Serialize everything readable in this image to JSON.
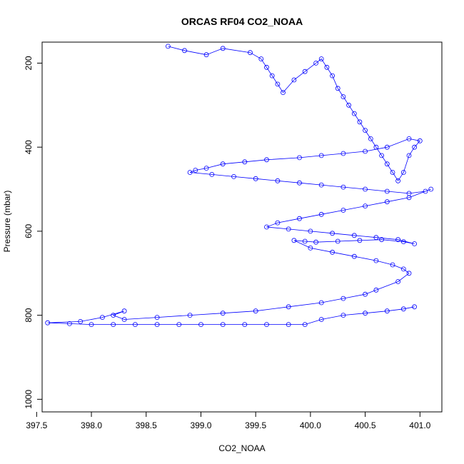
{
  "chart_data": {
    "type": "scatter",
    "title": "ORCAS RF04 CO2_NOAA",
    "xlabel": "CO2_NOAA",
    "ylabel": "Pressure (mbar)",
    "xlim": [
      397.55,
      401.2
    ],
    "ylim": [
      1030,
      150
    ],
    "y_inverted": true,
    "x_ticks": [
      "397.5",
      "398.0",
      "398.5",
      "399.0",
      "399.5",
      "400.0",
      "400.5",
      "401.0"
    ],
    "x_tick_values": [
      397.5,
      398.0,
      398.5,
      399.0,
      399.5,
      400.0,
      400.5,
      401.0
    ],
    "y_ticks": [
      "200",
      "400",
      "600",
      "800",
      "1000"
    ],
    "y_tick_values": [
      200,
      400,
      600,
      800,
      1000
    ],
    "series_color": "#0000ff",
    "marker": "open-circle",
    "connected": true,
    "series": [
      {
        "x": [
          398.7,
          398.85,
          399.05,
          399.2,
          399.45,
          399.55,
          399.6,
          399.65,
          399.7,
          399.75,
          399.85,
          399.95,
          400.05,
          400.1,
          400.15,
          400.2,
          400.25,
          400.3,
          400.35,
          400.4,
          400.45,
          400.5,
          400.55,
          400.6,
          400.65,
          400.7,
          400.75,
          400.8,
          400.85,
          400.9,
          400.95,
          401.0,
          400.9,
          400.7,
          400.5,
          400.3,
          400.1,
          399.9,
          399.6,
          399.4,
          399.2,
          399.05,
          398.95,
          398.9,
          399.1,
          399.3,
          399.5,
          399.7,
          399.9,
          400.1,
          400.3,
          400.5,
          400.7,
          400.9,
          401.05,
          401.1,
          400.9,
          400.7,
          400.5,
          400.3,
          400.1,
          399.9,
          399.7,
          399.6,
          399.8,
          400.0,
          400.2,
          400.4,
          400.6,
          400.8,
          400.95,
          400.85,
          400.65,
          400.45,
          400.25,
          400.05,
          399.95,
          399.85,
          400.0,
          400.2,
          400.4,
          400.6,
          400.75,
          400.85,
          400.9,
          400.8,
          400.6,
          400.5,
          400.3,
          400.1,
          399.8,
          399.5,
          399.2,
          398.9,
          398.6,
          398.3,
          398.2,
          398.3,
          398.1,
          397.9,
          397.6,
          397.8,
          398.0,
          398.2,
          398.4,
          398.6,
          398.8,
          399.0,
          399.2,
          399.4,
          399.6,
          399.8,
          399.95,
          400.1,
          400.3,
          400.5,
          400.7,
          400.85,
          400.95
        ],
        "y": [
          160,
          170,
          180,
          165,
          175,
          190,
          210,
          230,
          250,
          270,
          240,
          220,
          200,
          190,
          210,
          230,
          260,
          280,
          300,
          320,
          340,
          360,
          380,
          400,
          420,
          440,
          460,
          480,
          460,
          420,
          400,
          385,
          380,
          400,
          410,
          415,
          420,
          425,
          430,
          435,
          440,
          450,
          455,
          460,
          465,
          470,
          475,
          480,
          485,
          490,
          495,
          500,
          505,
          510,
          505,
          500,
          520,
          530,
          540,
          550,
          560,
          570,
          580,
          590,
          595,
          600,
          605,
          610,
          615,
          620,
          630,
          625,
          620,
          622,
          624,
          626,
          624,
          622,
          640,
          650,
          660,
          670,
          680,
          690,
          700,
          720,
          740,
          750,
          760,
          770,
          780,
          790,
          795,
          800,
          805,
          810,
          800,
          790,
          805,
          815,
          818,
          820,
          822,
          822,
          822,
          822,
          822,
          822,
          822,
          822,
          822,
          822,
          822,
          810,
          800,
          795,
          790,
          785,
          780
        ]
      }
    ]
  }
}
